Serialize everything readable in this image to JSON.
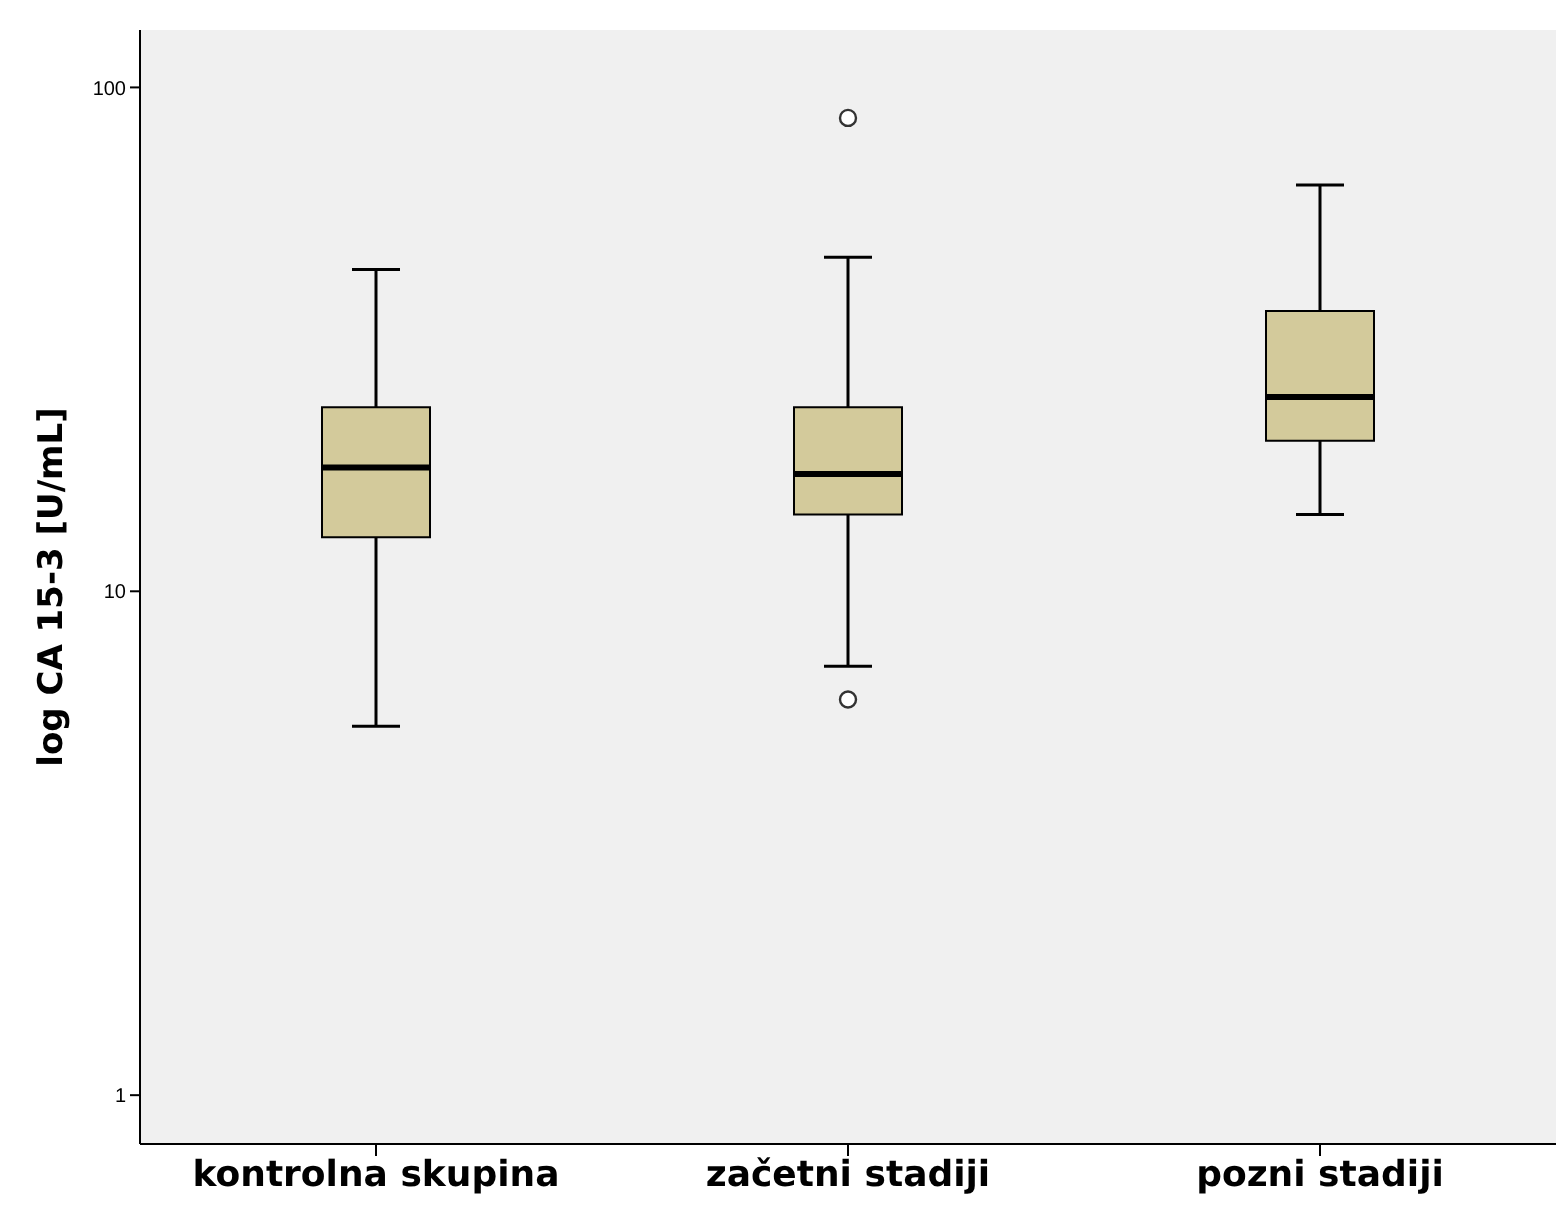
{
  "chart_data": {
    "type": "box",
    "ylabel": "log CA 15-3 [U/mL]",
    "categories": [
      "kontrolna skupina",
      "začetni stadiji",
      "pozni stadiji"
    ],
    "boxes": [
      {
        "low": 5.4,
        "q1": 12.8,
        "median": 17.6,
        "q3": 23.2,
        "high": 43.5
      },
      {
        "low": 7.1,
        "q1": 14.2,
        "median": 17.1,
        "q3": 23.2,
        "high": 46,
        "outliers": [
          87,
          6.1
        ]
      },
      {
        "low": 14.2,
        "q1": 19.9,
        "median": 24.3,
        "q3": 36,
        "high": 64
      }
    ],
    "color": "#d3ca9b",
    "log": true,
    "ylim": [
      0.8,
      130
    ],
    "yticks": [
      1,
      10,
      100
    ],
    "grid": false
  }
}
